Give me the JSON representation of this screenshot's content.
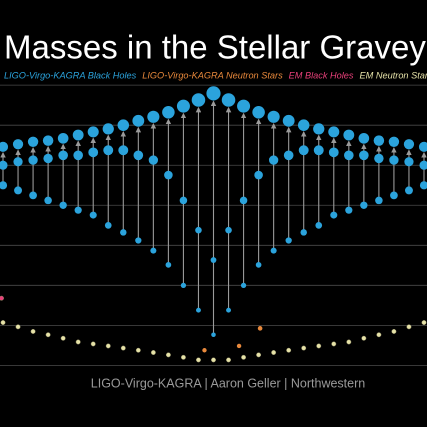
{
  "chart_data": {
    "type": "graveyard",
    "title": "Masses in the Stellar Graveyard",
    "credit": "LIGO-Virgo-KAGRA | Aaron Geller | Northwestern",
    "log": true,
    "grid": true,
    "xlim": [
      -14.2,
      14.2
    ],
    "ylim": [
      0.7,
      150
    ],
    "yticks": [
      1,
      2,
      4,
      8,
      16,
      32,
      64,
      128
    ],
    "series": [
      {
        "name": "LIGO-Virgo-KAGRA Black Holes",
        "color": "#2ba3dc",
        "x": [
          -14,
          -13,
          -12,
          -11,
          -10,
          -9,
          -8,
          -7,
          -6,
          -5,
          -4,
          -3,
          -2,
          -1,
          0,
          1,
          2,
          3,
          4,
          5,
          6,
          7,
          8,
          9,
          10,
          11,
          12,
          13,
          14
        ],
        "final": [
          44,
          46,
          48,
          49,
          51,
          54,
          57,
          60,
          64,
          69,
          74,
          80,
          89,
          99,
          111,
          99,
          89,
          80,
          74,
          69,
          64,
          60,
          57,
          54,
          51,
          49,
          48,
          46,
          44
        ],
        "primary": [
          32,
          34,
          35,
          36,
          38,
          38,
          40,
          41.5,
          41.5,
          38,
          35,
          27,
          17.4,
          10.4,
          6.2,
          10.4,
          17.4,
          27,
          35,
          38,
          41.5,
          41.5,
          40,
          38,
          38,
          36,
          35,
          34,
          32
        ],
        "secondary": [
          22.6,
          20.7,
          19,
          17.4,
          16,
          14.7,
          13.5,
          11.3,
          10,
          8.7,
          7.3,
          5.7,
          4,
          2.6,
          1.7,
          2.6,
          4,
          5.7,
          7.3,
          8.7,
          10,
          11.3,
          13.5,
          14.7,
          16,
          17.4,
          19,
          20.7,
          22.6
        ]
      },
      {
        "name": "LIGO-Virgo-KAGRA Neutron Stars",
        "color": "#e8893c",
        "x": [
          -0.6,
          1.7,
          3.1
        ],
        "values": [
          1.3,
          1.4,
          1.9
        ]
      },
      {
        "name": "EM Black Holes",
        "color": "#e8407a",
        "x": [
          -14.1
        ],
        "values": [
          3.2
        ]
      },
      {
        "name": "EM Neutron Stars",
        "color": "#e6e2a8",
        "x": [
          -14,
          -13,
          -12,
          -11,
          -10,
          -9,
          -8,
          -7,
          -6,
          -5,
          -4,
          -3,
          -2,
          -1,
          0,
          1,
          2,
          3,
          4,
          5,
          6,
          7,
          8,
          9,
          10,
          11,
          12,
          13,
          14
        ],
        "values": [
          2.1,
          1.95,
          1.8,
          1.7,
          1.6,
          1.5,
          1.45,
          1.4,
          1.35,
          1.3,
          1.25,
          1.2,
          1.15,
          1.1,
          1.1,
          1.1,
          1.15,
          1.2,
          1.25,
          1.3,
          1.35,
          1.4,
          1.45,
          1.5,
          1.6,
          1.7,
          1.8,
          1.95,
          2.1
        ]
      }
    ]
  }
}
